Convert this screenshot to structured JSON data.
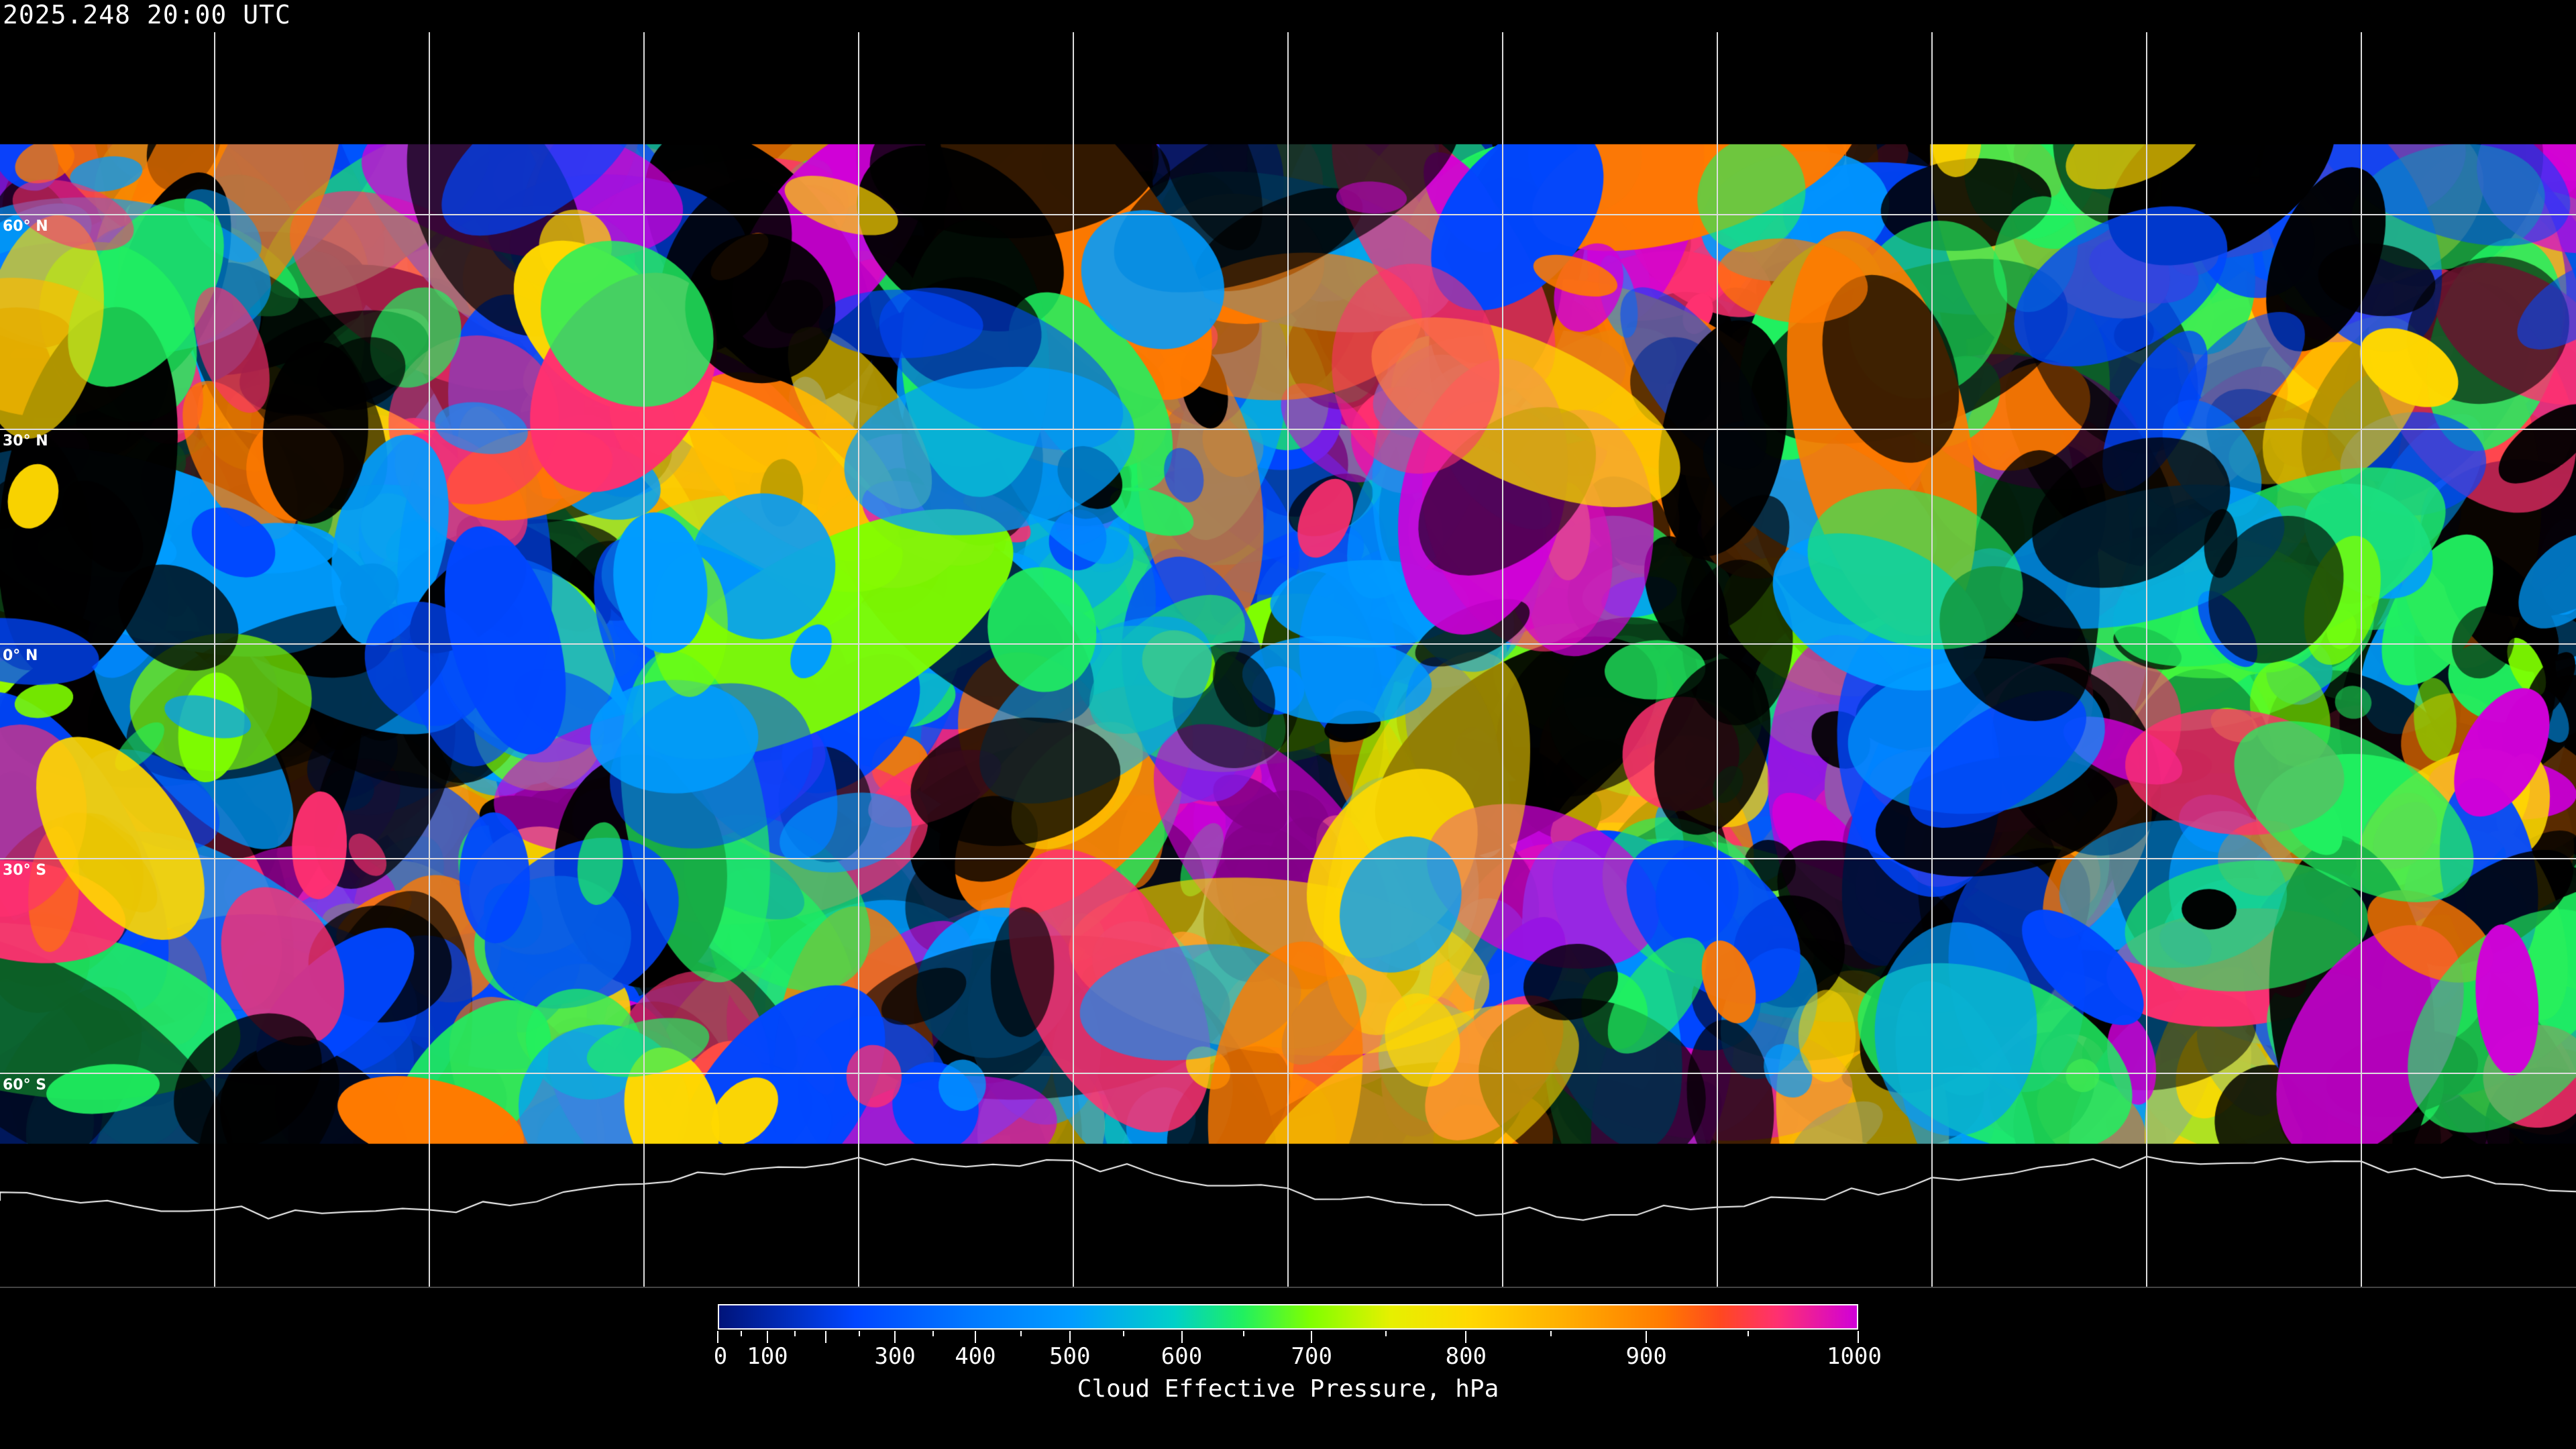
{
  "title": "2025.248 20:00 UTC",
  "map": {
    "projection": "equirectangular",
    "graticule_spacing_deg": 30,
    "lat_labels": [
      "60° N",
      "30° N",
      "0° N",
      "30° S",
      "60° S"
    ],
    "coastlines_color": "#ffffff",
    "no_data_color": "#000000"
  },
  "colorbar": {
    "label": "Cloud Effective Pressure, hPa",
    "range": [
      0,
      1000
    ],
    "tick_labels": [
      "0",
      "100",
      "300",
      "400",
      "500",
      "600",
      "700",
      "800",
      "900",
      "1000"
    ],
    "colors": [
      "#00147a",
      "#0046ff",
      "#009cff",
      "#20f060",
      "#80ff00",
      "#ffd800",
      "#ff7a00",
      "#ff3070",
      "#d000d8"
    ]
  }
}
